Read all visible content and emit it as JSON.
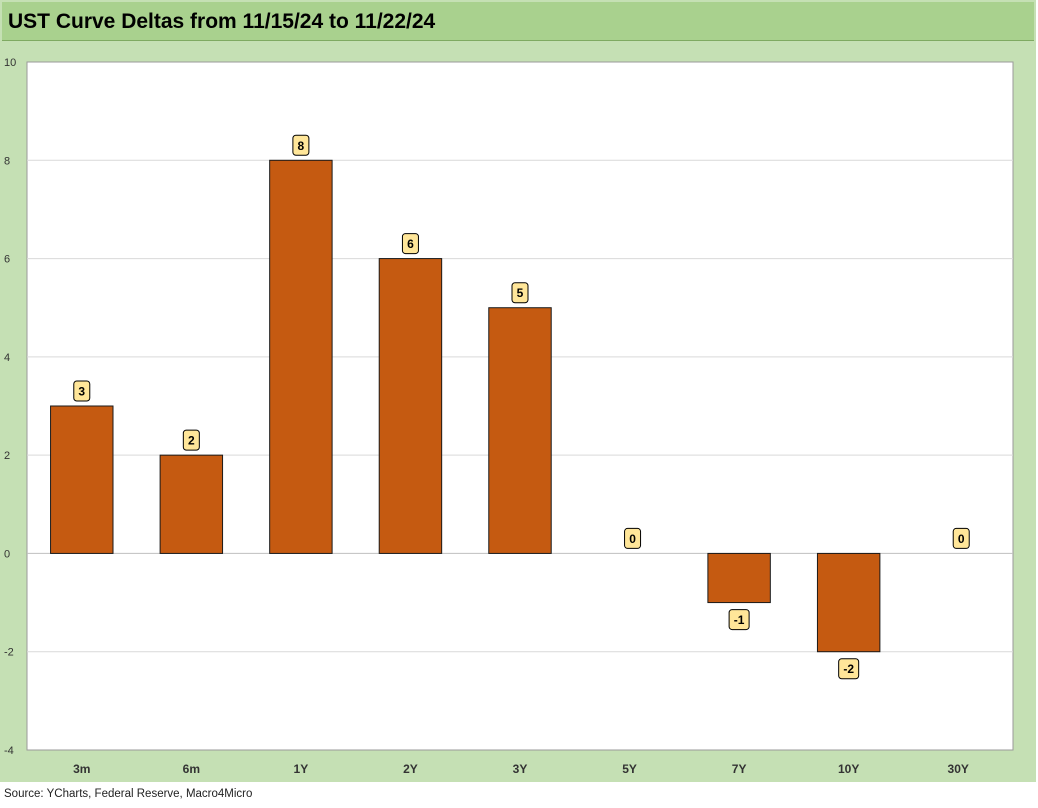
{
  "colors": {
    "frame": "#c5e0b4",
    "title_bar": "#a9d18e",
    "bar": "#c55a11",
    "label_bg": "#ffe699"
  },
  "chart_data": {
    "type": "bar",
    "title": "UST Curve Deltas from 11/15/24 to 11/22/24",
    "categories": [
      "3m",
      "6m",
      "1Y",
      "2Y",
      "3Y",
      "5Y",
      "7Y",
      "10Y",
      "30Y"
    ],
    "values": [
      3,
      2,
      8,
      6,
      5,
      0,
      -1,
      -2,
      0
    ],
    "ylim": [
      -4,
      10
    ],
    "yticks": [
      -4,
      -2,
      0,
      2,
      4,
      6,
      8,
      10
    ],
    "xlabel": "",
    "ylabel": "",
    "grid": true,
    "legend": "none"
  },
  "footer": {
    "source": "Source: YCharts, Federal Reserve, Macro4Micro"
  }
}
